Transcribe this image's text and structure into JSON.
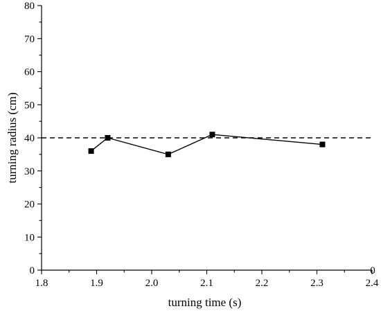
{
  "chart_data": {
    "type": "line",
    "xlabel": "turning time (s)",
    "ylabel": "turning radius (cm)",
    "xlim": [
      1.8,
      2.4
    ],
    "ylim": [
      0,
      80
    ],
    "x_ticks": [
      "1.8",
      "1.9",
      "2.0",
      "2.1",
      "2.2",
      "2.3",
      "2.4"
    ],
    "y_ticks": [
      "0",
      "10",
      "20",
      "30",
      "40",
      "50",
      "60",
      "70",
      "80"
    ],
    "x_tick_values": [
      1.8,
      1.9,
      2.0,
      2.1,
      2.2,
      2.3,
      2.4
    ],
    "y_tick_values": [
      0,
      10,
      20,
      30,
      40,
      50,
      60,
      70,
      80
    ],
    "series": [
      {
        "marker": "square",
        "x": [
          1.89,
          1.92,
          2.03,
          2.11,
          2.31
        ],
        "y": [
          36,
          40,
          35,
          41,
          38
        ]
      }
    ],
    "reference_line": {
      "y": 40,
      "style": "dashed"
    },
    "grid": false,
    "corner_label": "0"
  }
}
